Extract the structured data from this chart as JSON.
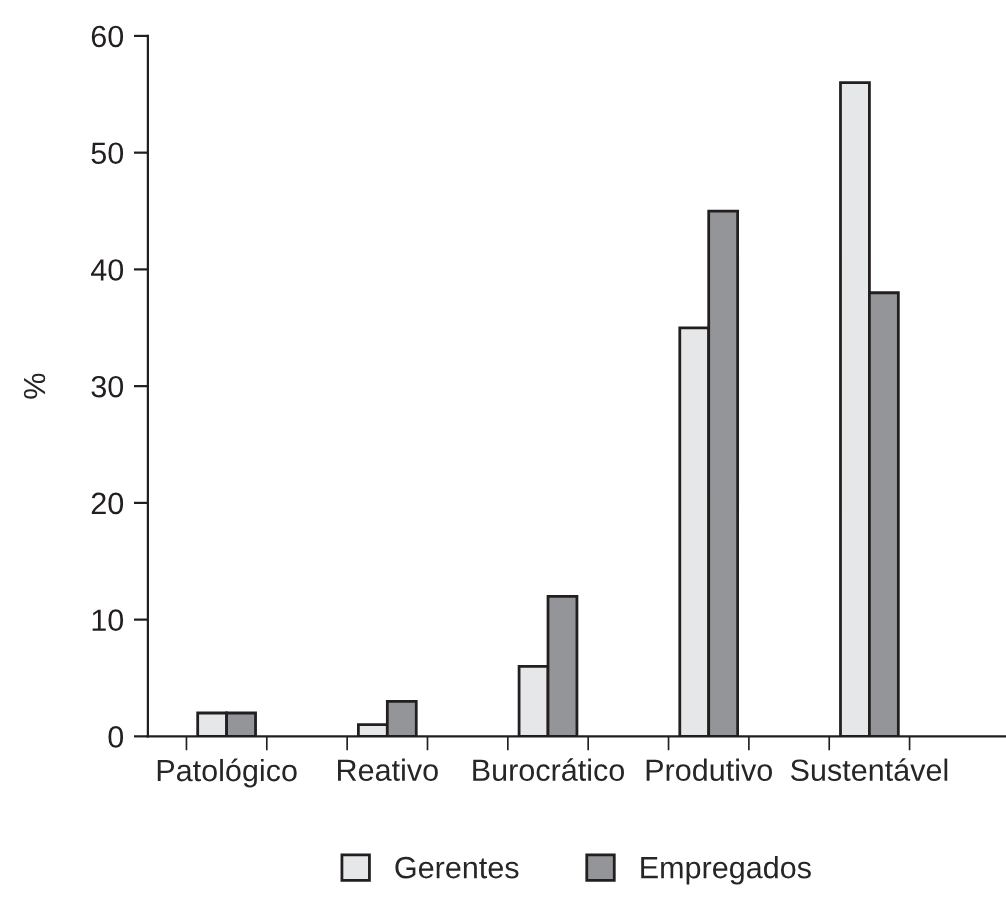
{
  "chart_data": {
    "type": "bar",
    "ylabel": "%",
    "categories": [
      "Patológico",
      "Reativo",
      "Burocrático",
      "Produtivo",
      "Sustentável"
    ],
    "series": [
      {
        "name": "Gerentes",
        "color": "#e6e7e8",
        "values": [
          2,
          1,
          6,
          35,
          56
        ]
      },
      {
        "name": "Empregados",
        "color": "#939598",
        "values": [
          2,
          3,
          12,
          45,
          38
        ]
      }
    ],
    "ylim": [
      0,
      60
    ],
    "yticks": [
      0,
      10,
      20,
      30,
      40,
      50,
      60
    ],
    "grid": false,
    "legend": "bottom"
  }
}
